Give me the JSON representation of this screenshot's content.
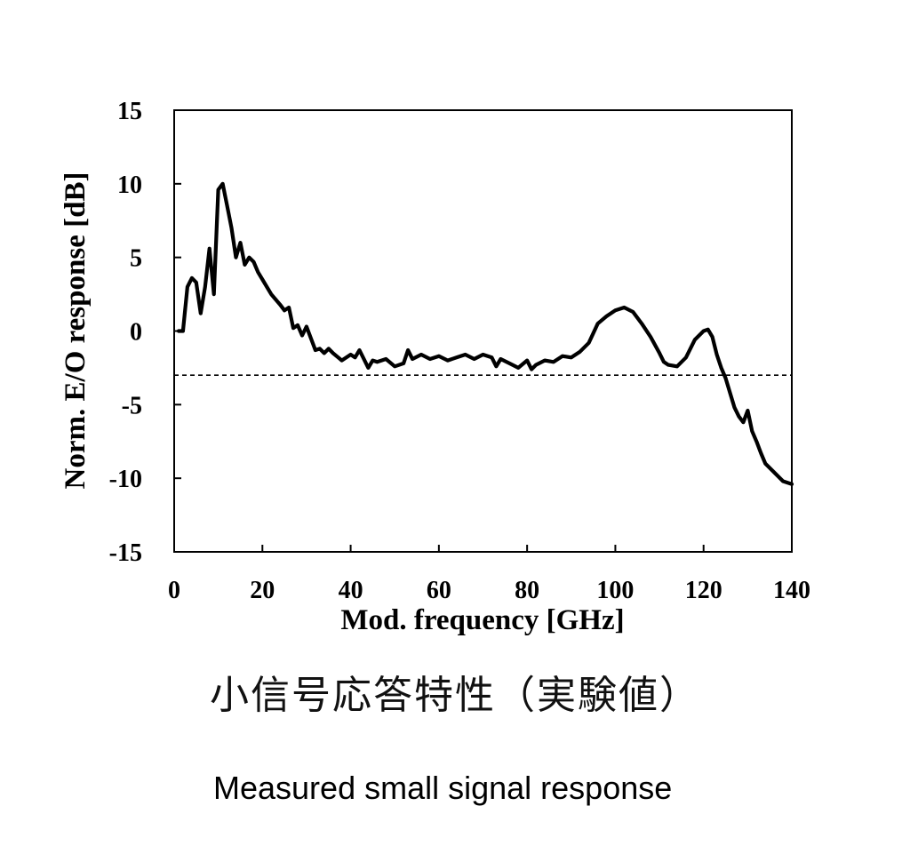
{
  "chart_data": {
    "type": "line",
    "title": "",
    "xlabel": "Mod. frequency [GHz]",
    "ylabel": "Norm. E/O response [dB]",
    "xlim": [
      0,
      140
    ],
    "ylim": [
      -15,
      15
    ],
    "x_ticks": [
      "0",
      "20",
      "40",
      "60",
      "80",
      "100",
      "120",
      "140"
    ],
    "y_ticks": [
      "15",
      "10",
      "5",
      "0",
      "-5",
      "-10",
      "-15"
    ],
    "grid": false,
    "reference_line": {
      "y": -3,
      "style": "dashed"
    },
    "series": [
      {
        "x": [
          1,
          2,
          3,
          4,
          5,
          6,
          7,
          8,
          9,
          10,
          11,
          12,
          13,
          14,
          15,
          16,
          17,
          18,
          19,
          20,
          22,
          24,
          25,
          26,
          27,
          28,
          29,
          30,
          32,
          33,
          34,
          35,
          36,
          38,
          40,
          41,
          42,
          44,
          45,
          46,
          48,
          50,
          52,
          53,
          54,
          56,
          58,
          60,
          62,
          64,
          66,
          68,
          70,
          72,
          73,
          74,
          76,
          78,
          80,
          81,
          82,
          84,
          86,
          88,
          90,
          92,
          94,
          96,
          98,
          100,
          102,
          104,
          106,
          108,
          110,
          111,
          112,
          114,
          116,
          118,
          120,
          121,
          122,
          123,
          124,
          125,
          126,
          127,
          128,
          129,
          130,
          131,
          132,
          133,
          134,
          136,
          138,
          140
        ],
        "y": [
          0,
          0,
          3,
          3.6,
          3.3,
          1.2,
          3,
          5.6,
          2.5,
          9.6,
          10,
          8.5,
          7,
          5,
          6,
          4.5,
          5,
          4.7,
          4,
          3.5,
          2.5,
          1.8,
          1.4,
          1.6,
          0.2,
          0.4,
          -0.3,
          0.3,
          -1.3,
          -1.2,
          -1.5,
          -1.2,
          -1.5,
          -2,
          -1.6,
          -1.8,
          -1.3,
          -2.5,
          -2,
          -2.1,
          -1.9,
          -2.4,
          -2.2,
          -1.3,
          -1.9,
          -1.6,
          -1.9,
          -1.7,
          -2,
          -1.8,
          -1.6,
          -1.9,
          -1.6,
          -1.8,
          -2.4,
          -1.9,
          -2.2,
          -2.5,
          -2,
          -2.6,
          -2.3,
          -2,
          -2.1,
          -1.7,
          -1.8,
          -1.4,
          -0.8,
          0.5,
          1,
          1.4,
          1.6,
          1.3,
          0.5,
          -0.4,
          -1.5,
          -2.1,
          -2.3,
          -2.4,
          -1.8,
          -0.6,
          0,
          0.1,
          -0.4,
          -1.6,
          -2.5,
          -3.2,
          -4.2,
          -5.2,
          -5.8,
          -6.2,
          -5.4,
          -6.8,
          -7.5,
          -8.3,
          -9,
          -9.6,
          -10.2,
          -10.4
        ]
      }
    ]
  },
  "captions": {
    "japanese": "小信号応答特性（実験値）",
    "english": "Measured small signal response"
  }
}
